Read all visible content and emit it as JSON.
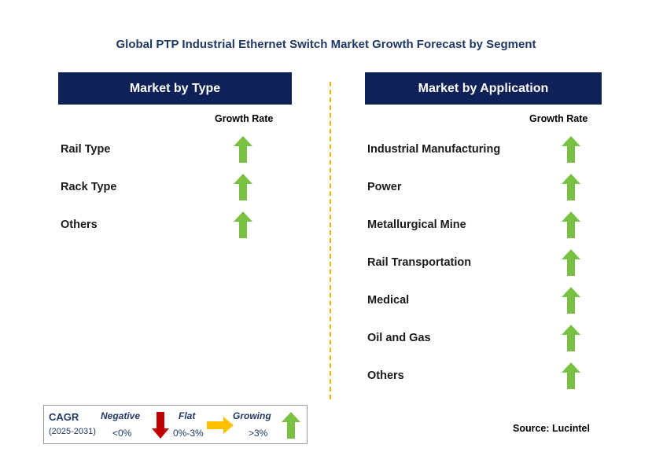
{
  "title": "Global PTP Industrial Ethernet Switch Market Growth Forecast by Segment",
  "left_panel": {
    "header": "Market by Type",
    "growth_label": "Growth Rate",
    "items": [
      {
        "label": "Rail Type",
        "trend": "growing"
      },
      {
        "label": "Rack Type",
        "trend": "growing"
      },
      {
        "label": "Others",
        "trend": "growing"
      }
    ]
  },
  "right_panel": {
    "header": "Market by Application",
    "growth_label": "Growth Rate",
    "items": [
      {
        "label": "Industrial Manufacturing",
        "trend": "growing"
      },
      {
        "label": "Power",
        "trend": "growing"
      },
      {
        "label": "Metallurgical Mine",
        "trend": "growing"
      },
      {
        "label": "Rail Transportation",
        "trend": "growing"
      },
      {
        "label": "Medical",
        "trend": "growing"
      },
      {
        "label": "Oil and Gas",
        "trend": "growing"
      },
      {
        "label": "Others",
        "trend": "growing"
      }
    ]
  },
  "legend": {
    "cagr": "CAGR",
    "period": "(2025-2031)",
    "negative": {
      "label": "Negative",
      "range": "<0%",
      "icon": "down-arrow-icon",
      "color": "#c00000"
    },
    "flat": {
      "label": "Flat",
      "range": "0%-3%",
      "icon": "right-arrow-icon",
      "color": "#ffc000"
    },
    "growing": {
      "label": "Growing",
      "range": ">3%",
      "icon": "up-arrow-icon",
      "color": "#7ac143"
    }
  },
  "source": "Source: Lucintel",
  "colors": {
    "header_bg": "#0e2258",
    "title": "#1f3864",
    "divider": "#f0b400",
    "up_arrow": "#7ac143"
  }
}
